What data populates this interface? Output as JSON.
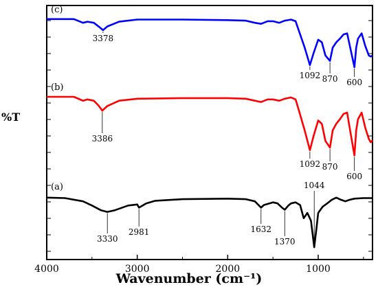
{
  "chart_data": {
    "type": "line",
    "xlabel": "Wavenumber (cm⁻¹)",
    "ylabel": "%T",
    "xlim": [
      4000,
      400
    ],
    "x_reversed": true,
    "x_ticks": [
      4000,
      3000,
      2000,
      1000
    ],
    "y_ticks_labeled": false,
    "grid": false,
    "legend": "none",
    "series": [
      {
        "name": "(c)",
        "color": "#0000ff",
        "points": [
          [
            4000,
            99
          ],
          [
            3700,
            99
          ],
          [
            3600,
            92
          ],
          [
            3550,
            94
          ],
          [
            3480,
            92
          ],
          [
            3420,
            84
          ],
          [
            3378,
            78
          ],
          [
            3330,
            85
          ],
          [
            3200,
            94
          ],
          [
            3000,
            98
          ],
          [
            2500,
            98
          ],
          [
            2000,
            97
          ],
          [
            1800,
            96
          ],
          [
            1700,
            92
          ],
          [
            1632,
            90
          ],
          [
            1560,
            95
          ],
          [
            1500,
            95
          ],
          [
            1430,
            92
          ],
          [
            1370,
            96
          ],
          [
            1300,
            98
          ],
          [
            1250,
            95
          ],
          [
            1200,
            70
          ],
          [
            1150,
            45
          ],
          [
            1092,
            12
          ],
          [
            1050,
            35
          ],
          [
            1000,
            60
          ],
          [
            960,
            55
          ],
          [
            920,
            30
          ],
          [
            870,
            20
          ],
          [
            840,
            45
          ],
          [
            800,
            55
          ],
          [
            760,
            62
          ],
          [
            720,
            70
          ],
          [
            680,
            72
          ],
          [
            640,
            40
          ],
          [
            600,
            8
          ],
          [
            580,
            45
          ],
          [
            560,
            62
          ],
          [
            520,
            72
          ],
          [
            480,
            48
          ],
          [
            440,
            30
          ],
          [
            420,
            28
          ],
          [
            400,
            30
          ]
        ],
        "labels": [
          {
            "x": 3378,
            "text": "3378"
          },
          {
            "x": 1092,
            "text": "1092"
          },
          {
            "x": 870,
            "text": "870"
          },
          {
            "x": 600,
            "text": "600"
          }
        ]
      },
      {
        "name": "(b)",
        "color": "#ff0000",
        "points": [
          [
            4000,
            99
          ],
          [
            3700,
            99
          ],
          [
            3600,
            93
          ],
          [
            3550,
            95
          ],
          [
            3480,
            93
          ],
          [
            3430,
            86
          ],
          [
            3386,
            78
          ],
          [
            3330,
            85
          ],
          [
            3200,
            93
          ],
          [
            3000,
            96
          ],
          [
            2500,
            97
          ],
          [
            2000,
            97
          ],
          [
            1800,
            96
          ],
          [
            1700,
            93
          ],
          [
            1632,
            91
          ],
          [
            1560,
            95
          ],
          [
            1500,
            95
          ],
          [
            1430,
            93
          ],
          [
            1370,
            96
          ],
          [
            1300,
            98
          ],
          [
            1250,
            95
          ],
          [
            1200,
            72
          ],
          [
            1150,
            48
          ],
          [
            1092,
            18
          ],
          [
            1050,
            40
          ],
          [
            1000,
            63
          ],
          [
            960,
            58
          ],
          [
            920,
            32
          ],
          [
            870,
            22
          ],
          [
            840,
            48
          ],
          [
            800,
            58
          ],
          [
            760,
            65
          ],
          [
            720,
            73
          ],
          [
            680,
            75
          ],
          [
            640,
            42
          ],
          [
            600,
            10
          ],
          [
            580,
            48
          ],
          [
            560,
            65
          ],
          [
            520,
            75
          ],
          [
            480,
            52
          ],
          [
            440,
            35
          ],
          [
            420,
            30
          ],
          [
            400,
            33
          ]
        ],
        "labels": [
          {
            "x": 3386,
            "text": "3386"
          },
          {
            "x": 1092,
            "text": "1092"
          },
          {
            "x": 870,
            "text": "870"
          },
          {
            "x": 600,
            "text": "600"
          }
        ]
      },
      {
        "name": "(a)",
        "color": "#000000",
        "points": [
          [
            4000,
            99
          ],
          [
            3800,
            98
          ],
          [
            3600,
            92
          ],
          [
            3500,
            84
          ],
          [
            3400,
            75
          ],
          [
            3330,
            72
          ],
          [
            3250,
            75
          ],
          [
            3100,
            84
          ],
          [
            3000,
            86
          ],
          [
            2981,
            80
          ],
          [
            2940,
            84
          ],
          [
            2900,
            88
          ],
          [
            2800,
            93
          ],
          [
            2500,
            96
          ],
          [
            2000,
            97
          ],
          [
            1800,
            96
          ],
          [
            1700,
            92
          ],
          [
            1632,
            80
          ],
          [
            1600,
            85
          ],
          [
            1500,
            90
          ],
          [
            1450,
            88
          ],
          [
            1400,
            80
          ],
          [
            1370,
            76
          ],
          [
            1330,
            84
          ],
          [
            1300,
            88
          ],
          [
            1250,
            90
          ],
          [
            1200,
            85
          ],
          [
            1160,
            60
          ],
          [
            1120,
            70
          ],
          [
            1080,
            55
          ],
          [
            1044,
            5
          ],
          [
            1020,
            40
          ],
          [
            1000,
            70
          ],
          [
            950,
            82
          ],
          [
            900,
            88
          ],
          [
            850,
            95
          ],
          [
            800,
            99
          ],
          [
            750,
            95
          ],
          [
            700,
            92
          ],
          [
            650,
            95
          ],
          [
            600,
            97
          ],
          [
            500,
            98
          ],
          [
            400,
            98
          ]
        ],
        "labels": [
          {
            "x": 3330,
            "text": "3330"
          },
          {
            "x": 2981,
            "text": "2981"
          },
          {
            "x": 1632,
            "text": "1632"
          },
          {
            "x": 1370,
            "text": "1370"
          },
          {
            "x": 1044,
            "text": "1044"
          }
        ]
      }
    ]
  }
}
